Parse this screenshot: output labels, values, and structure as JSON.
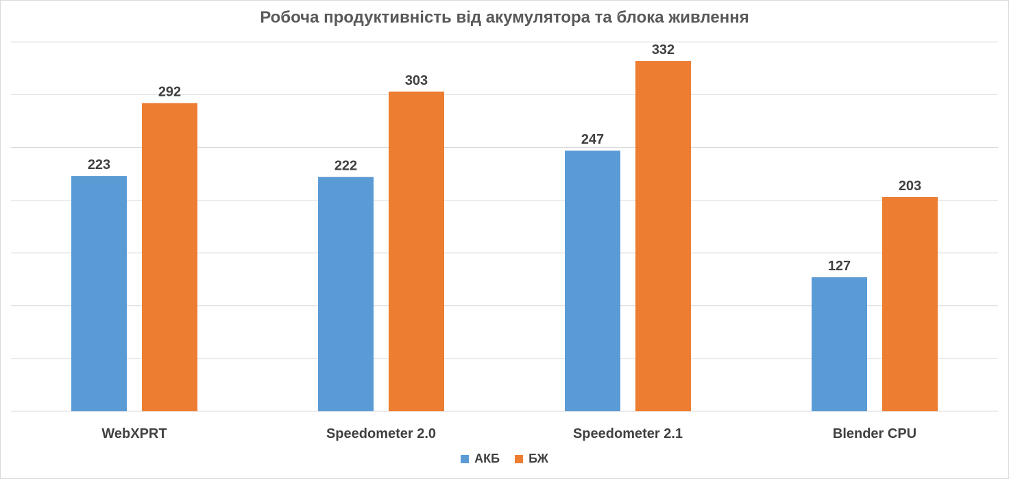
{
  "chart_data": {
    "type": "bar",
    "title": "Робоча продуктивність від акумулятора та блока живлення",
    "categories": [
      "WebXPRT",
      "Speedometer 2.0",
      "Speedometer 2.1",
      "Blender CPU"
    ],
    "series": [
      {
        "name": "АКБ",
        "values": [
          223,
          222,
          247,
          127
        ],
        "color": "#5b9bd5"
      },
      {
        "name": "БЖ",
        "values": [
          292,
          303,
          332,
          203
        ],
        "color": "#ed7d31"
      }
    ],
    "ylim": [
      0,
      350
    ],
    "grid": true,
    "legend_position": "bottom",
    "xlabel": "",
    "ylabel": ""
  }
}
